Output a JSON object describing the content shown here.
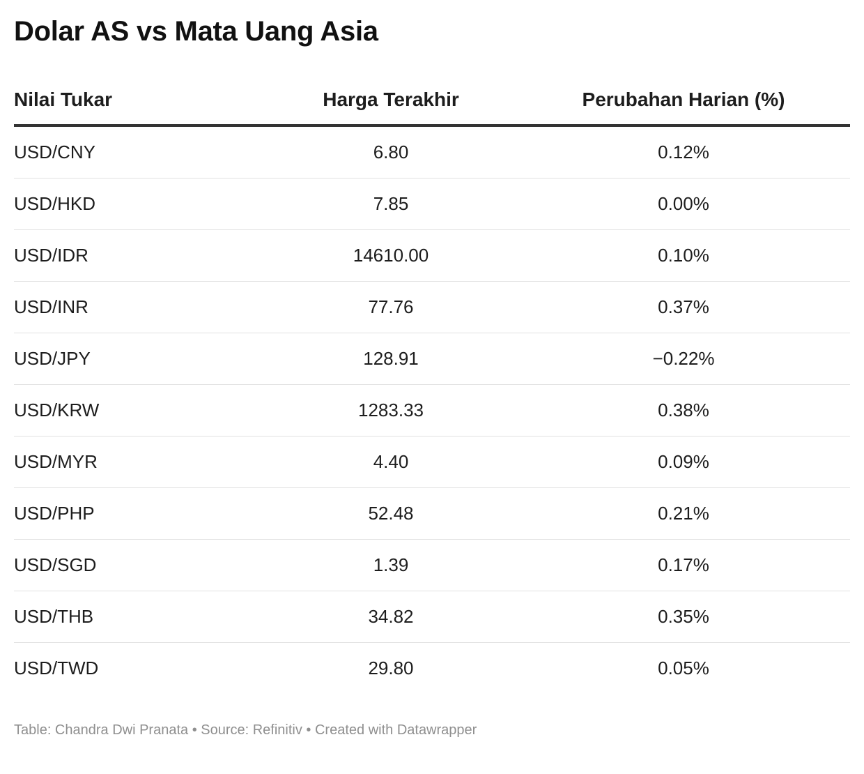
{
  "title": "Dolar AS vs Mata Uang Asia",
  "footer": "Table: Chandra Dwi Pranata • Source: Refinitiv • Created with Datawrapper",
  "chart_data": {
    "type": "table",
    "title": "Dolar AS vs Mata Uang Asia",
    "columns": [
      "Nilai Tukar",
      "Harga Terakhir",
      "Perubahan Harian (%)"
    ],
    "rows": [
      [
        "USD/CNY",
        "6.80",
        "0.12%"
      ],
      [
        "USD/HKD",
        "7.85",
        "0.00%"
      ],
      [
        "USD/IDR",
        "14610.00",
        "0.10%"
      ],
      [
        "USD/INR",
        "77.76",
        "0.37%"
      ],
      [
        "USD/JPY",
        "128.91",
        "−0.22%"
      ],
      [
        "USD/KRW",
        "1283.33",
        "0.38%"
      ],
      [
        "USD/MYR",
        "4.40",
        "0.09%"
      ],
      [
        "USD/PHP",
        "52.48",
        "0.21%"
      ],
      [
        "USD/SGD",
        "1.39",
        "0.17%"
      ],
      [
        "USD/THB",
        "34.82",
        "0.35%"
      ],
      [
        "USD/TWD",
        "29.80",
        "0.05%"
      ]
    ]
  }
}
